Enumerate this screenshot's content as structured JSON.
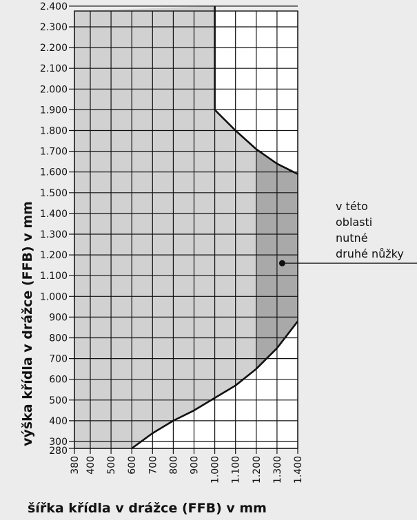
{
  "chart_data": {
    "type": "area",
    "xlabel": "šířka křídla v drážce (FFB) v mm",
    "ylabel": "výška křídla v drážce (FFB) v mm",
    "xlim": [
      380,
      1400
    ],
    "ylim": [
      280,
      2400
    ],
    "x_ticks": [
      {
        "v": 380,
        "label": "380"
      },
      {
        "v": 400,
        "label": "400"
      },
      {
        "v": 500,
        "label": "500"
      },
      {
        "v": 600,
        "label": "600"
      },
      {
        "v": 700,
        "label": "700"
      },
      {
        "v": 800,
        "label": "800"
      },
      {
        "v": 900,
        "label": "900"
      },
      {
        "v": 1000,
        "label": "1.000"
      },
      {
        "v": 1100,
        "label": "1.100"
      },
      {
        "v": 1200,
        "label": "1.200"
      },
      {
        "v": 1300,
        "label": "1.300"
      },
      {
        "v": 1400,
        "label": "1.400"
      }
    ],
    "y_ticks": [
      {
        "v": 280,
        "label": "280"
      },
      {
        "v": 300,
        "label": "300"
      },
      {
        "v": 400,
        "label": "400"
      },
      {
        "v": 500,
        "label": "500"
      },
      {
        "v": 600,
        "label": "600"
      },
      {
        "v": 700,
        "label": "700"
      },
      {
        "v": 800,
        "label": "800"
      },
      {
        "v": 900,
        "label": "900"
      },
      {
        "v": 1000,
        "label": "1.000"
      },
      {
        "v": 1100,
        "label": "1.100"
      },
      {
        "v": 1200,
        "label": "1.200"
      },
      {
        "v": 1300,
        "label": "1.300"
      },
      {
        "v": 1400,
        "label": "1.400"
      },
      {
        "v": 1500,
        "label": "1.500"
      },
      {
        "v": 1600,
        "label": "1.600"
      },
      {
        "v": 1700,
        "label": "1.700"
      },
      {
        "v": 1800,
        "label": "1.800"
      },
      {
        "v": 1900,
        "label": "1.900"
      },
      {
        "v": 2000,
        "label": "2.000"
      },
      {
        "v": 2100,
        "label": "2.100"
      },
      {
        "v": 2200,
        "label": "2.200"
      },
      {
        "v": 2300,
        "label": "2.300"
      },
      {
        "v": 2400,
        "label": "2.400"
      }
    ],
    "upper_boundary": [
      {
        "x": 1000,
        "y": 2400
      },
      {
        "x": 1000,
        "y": 1900
      },
      {
        "x": 1100,
        "y": 1800
      },
      {
        "x": 1200,
        "y": 1710
      },
      {
        "x": 1300,
        "y": 1640
      },
      {
        "x": 1400,
        "y": 1590
      }
    ],
    "lower_boundary": [
      {
        "x": 600,
        "y": 280
      },
      {
        "x": 700,
        "y": 340
      },
      {
        "x": 800,
        "y": 400
      },
      {
        "x": 900,
        "y": 450
      },
      {
        "x": 1000,
        "y": 510
      },
      {
        "x": 1100,
        "y": 570
      },
      {
        "x": 1200,
        "y": 650
      },
      {
        "x": 1300,
        "y": 750
      },
      {
        "x": 1400,
        "y": 880
      }
    ],
    "second_scissors_from_x": 1200,
    "annotation": {
      "lines": [
        "v této",
        "oblasti",
        "nutné",
        "druhé nůžky"
      ],
      "point": {
        "x": 1325,
        "y": 1160
      }
    },
    "colors": {
      "background": "#ececec",
      "allowed_fill": "#d1d1d1",
      "second_scissors_fill": "#a9a9a9",
      "outside_fill": "#ffffff",
      "lines": "#111111"
    }
  }
}
